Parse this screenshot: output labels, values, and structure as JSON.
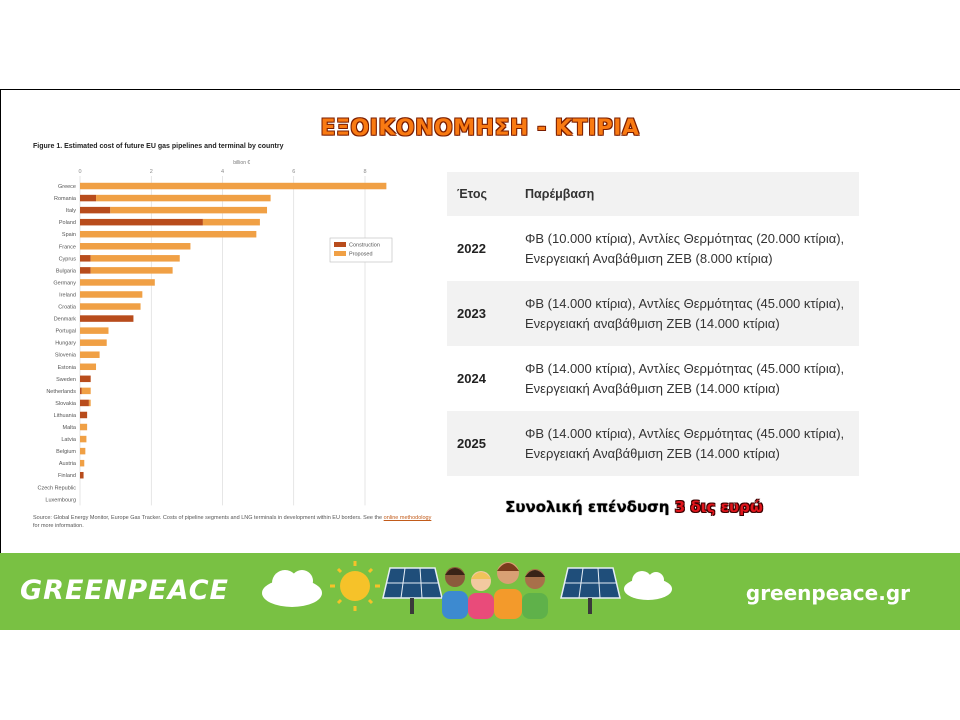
{
  "slide": {
    "title": "ΕΞΟΙΚΟΝΟΜΗΣΗ - ΚΤΙΡΙΑ",
    "investment_prefix": "Συνολική επένδυση ",
    "investment_highlight": "3 δις ευρώ"
  },
  "figure": {
    "title": "Figure 1. Estimated cost of future EU gas pipelines and terminal by country",
    "source_text": "Source: Global Energy Monitor, Europe Gas Tracker. Costs of pipeline segments and LNG terminals in development within EU borders. See the ",
    "source_link": "online methodology",
    "source_tail": " for more information."
  },
  "chart_data": {
    "type": "bar",
    "orientation": "horizontal",
    "stacked": true,
    "xlabel": "billion €",
    "xlim": [
      0,
      8
    ],
    "xticks": [
      0,
      2,
      4,
      6,
      8
    ],
    "grid": true,
    "legend_position": "right",
    "colors": {
      "Construction": "#b84c1c",
      "Proposed": "#f0a045"
    },
    "categories": [
      "Greece",
      "Romania",
      "Italy",
      "Poland",
      "Spain",
      "France",
      "Cyprus",
      "Bulgaria",
      "Germany",
      "Ireland",
      "Croatia",
      "Denmark",
      "Portugal",
      "Hungary",
      "Slovenia",
      "Estonia",
      "Sweden",
      "Netherlands",
      "Slovakia",
      "Lithuania",
      "Malta",
      "Latvia",
      "Belgium",
      "Austria",
      "Finland",
      "Czech Republic",
      "Luxembourg"
    ],
    "series": [
      {
        "name": "Construction",
        "values": [
          0,
          0.45,
          0.85,
          3.45,
          0,
          0,
          0.3,
          0.3,
          0,
          0,
          0,
          1.5,
          0,
          0,
          0,
          0,
          0.3,
          0.05,
          0.25,
          0.2,
          0,
          0,
          0,
          0,
          0.1,
          0,
          0
        ]
      },
      {
        "name": "Proposed",
        "values": [
          8.6,
          4.9,
          4.4,
          1.6,
          4.95,
          3.1,
          2.5,
          2.3,
          2.1,
          1.75,
          1.7,
          0,
          0.8,
          0.75,
          0.55,
          0.45,
          0,
          0.25,
          0.05,
          0,
          0.2,
          0.18,
          0.15,
          0.12,
          0,
          0,
          0
        ]
      }
    ]
  },
  "table": {
    "headers": {
      "year": "Έτος",
      "intervention": "Παρέμβαση"
    },
    "rows": [
      {
        "year": "2022",
        "text": "ΦΒ (10.000 κτίρια), Αντλίες Θερμότητας (20.000 κτίρια), Ενεργειακή Αναβάθμιση ΖΕΒ (8.000 κτίρια)"
      },
      {
        "year": "2023",
        "text": "ΦΒ (14.000 κτίρια), Αντλίες Θερμότητας (45.000 κτίρια), Ενεργειακή αναβάθμιση ΖΕΒ (14.000 κτίρια)"
      },
      {
        "year": "2024",
        "text": "ΦΒ (14.000 κτίρια), Αντλίες Θερμότητας (45.000 κτίρια), Ενεργειακή Αναβάθμιση ΖΕΒ (14.000 κτίρια)"
      },
      {
        "year": "2025",
        "text": "ΦΒ (14.000 κτίρια), Αντλίες Θερμότητας (45.000 κτίρια), Ενεργειακή Αναβάθμιση ΖΕΒ (14.000 κτίρια)"
      }
    ]
  },
  "footer": {
    "logo_text": "GREENPEACE",
    "url": "greenpeace.gr",
    "band_color": "#79c143",
    "illustration_icons": [
      "cloud-icon",
      "sun-icon",
      "solar-panel-icon",
      "people-icon",
      "solar-panel-icon",
      "cloud-icon"
    ]
  }
}
